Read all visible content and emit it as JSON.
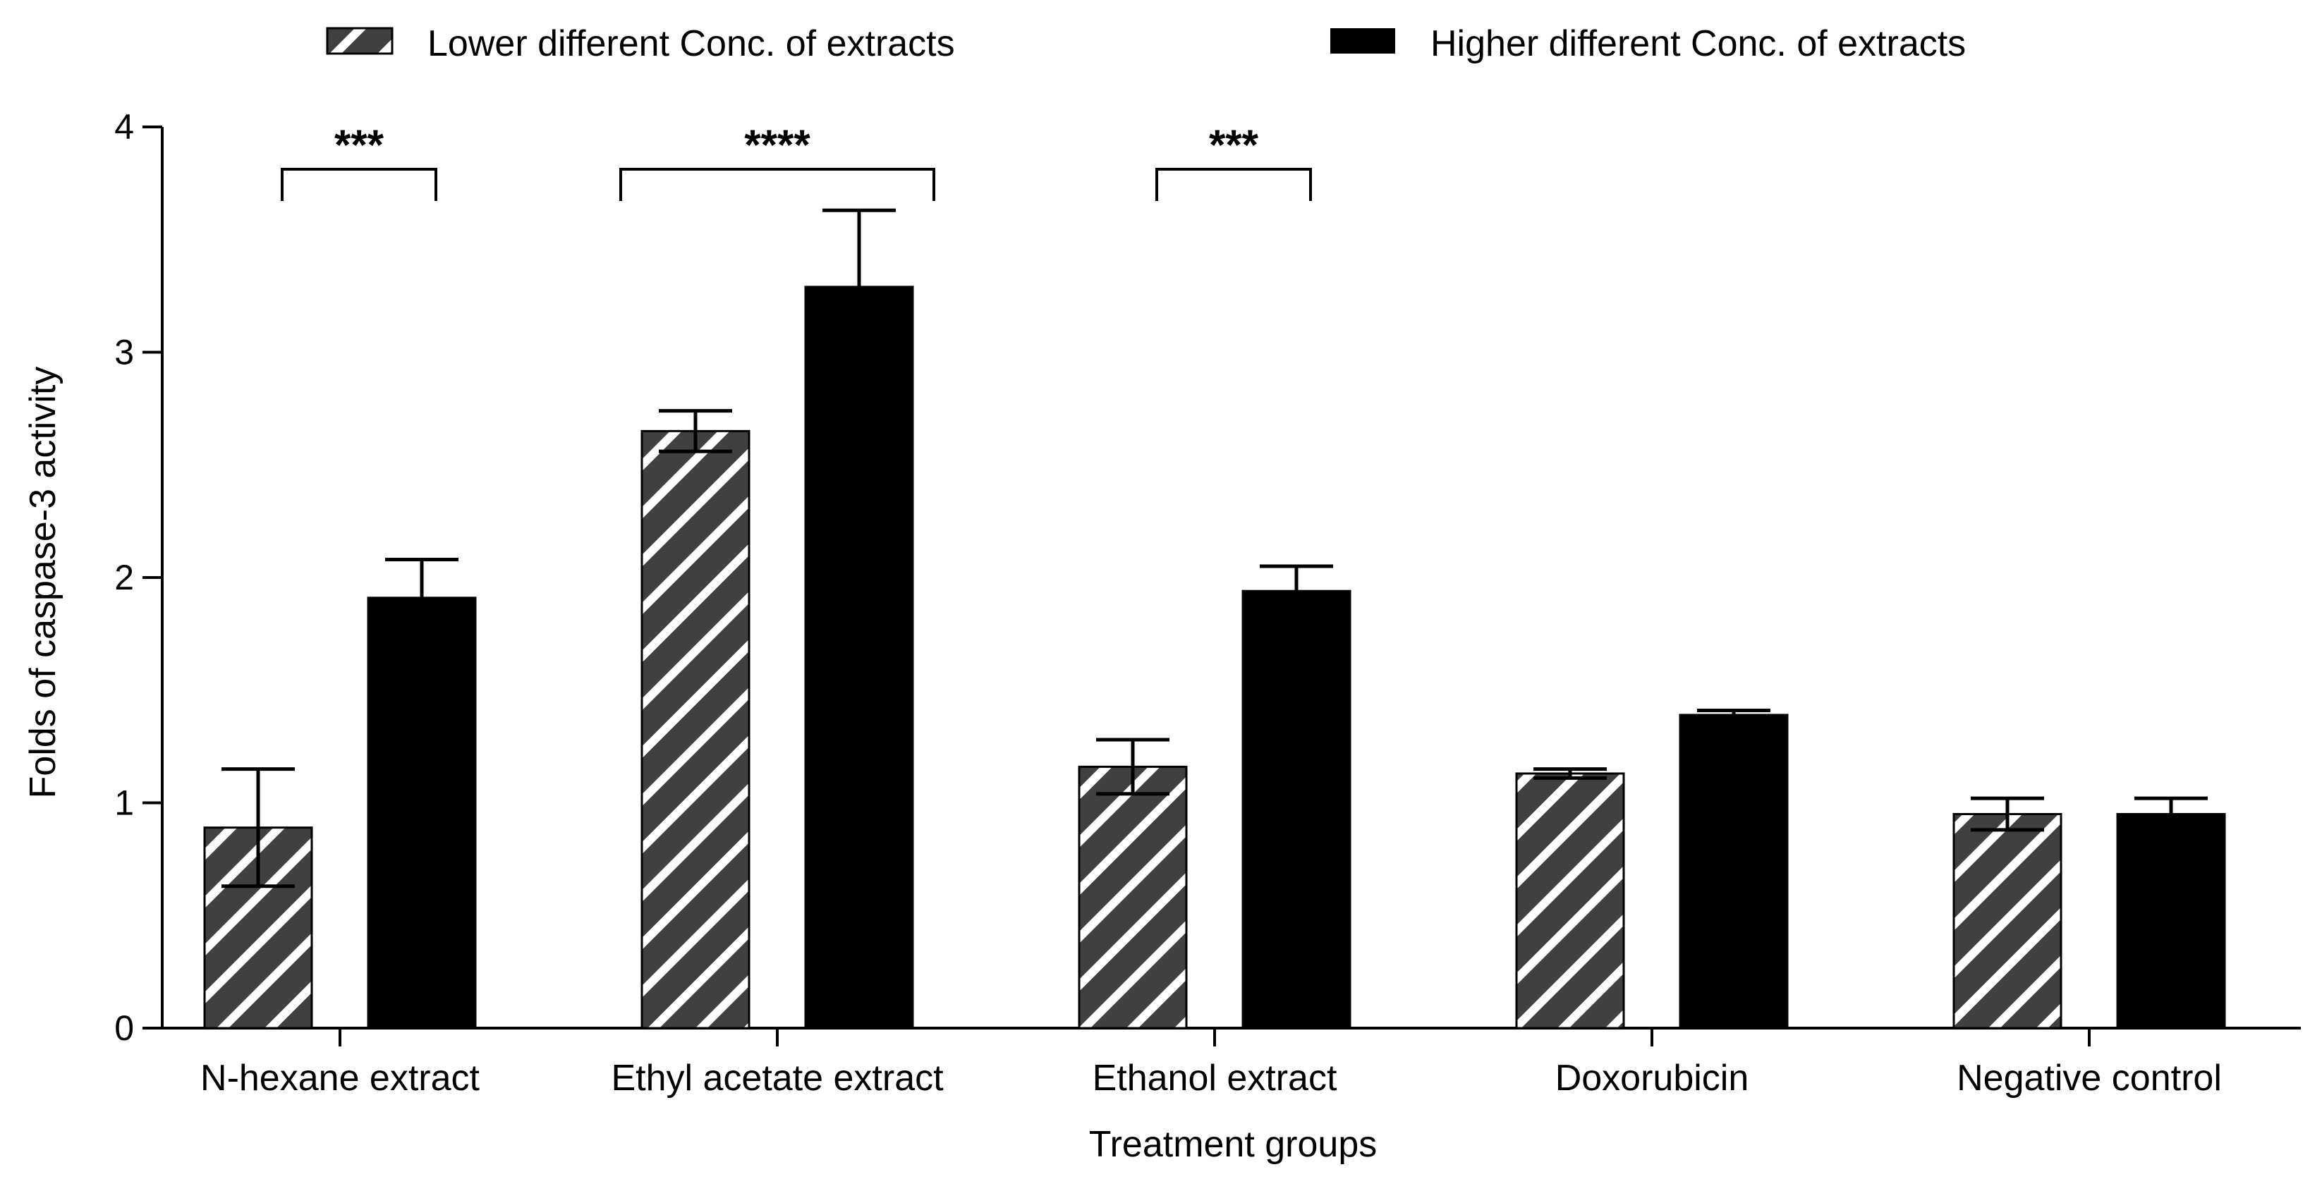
{
  "chart_data": {
    "type": "bar",
    "title": "",
    "xlabel": "Treatment groups",
    "ylabel": "Folds of caspase-3 activity",
    "ylim": [
      0,
      4
    ],
    "yticks": [
      0,
      1,
      2,
      3,
      4
    ],
    "grid": false,
    "legend_position": "top",
    "categories": [
      "N-hexane extract",
      "Ethyl acetate extract",
      "Ethanol extract",
      "Doxorubicin",
      "Negative control"
    ],
    "series": [
      {
        "name": "Lower different Conc. of extracts",
        "pattern": "hatched",
        "color": "#404040",
        "values": [
          0.89,
          2.65,
          1.16,
          1.13,
          0.95
        ],
        "errors": [
          0.26,
          0.09,
          0.12,
          0.02,
          0.07
        ]
      },
      {
        "name": "Higher different Conc. of extracts",
        "pattern": "solid",
        "color": "#000000",
        "values": [
          1.91,
          3.29,
          1.94,
          1.39,
          0.95
        ],
        "errors": [
          0.17,
          0.34,
          0.11,
          0.02,
          0.07
        ]
      }
    ],
    "annotations": [
      {
        "category_index": 0,
        "label": "***"
      },
      {
        "category_index": 1,
        "label": "****"
      },
      {
        "category_index": 2,
        "label": "***"
      }
    ]
  }
}
